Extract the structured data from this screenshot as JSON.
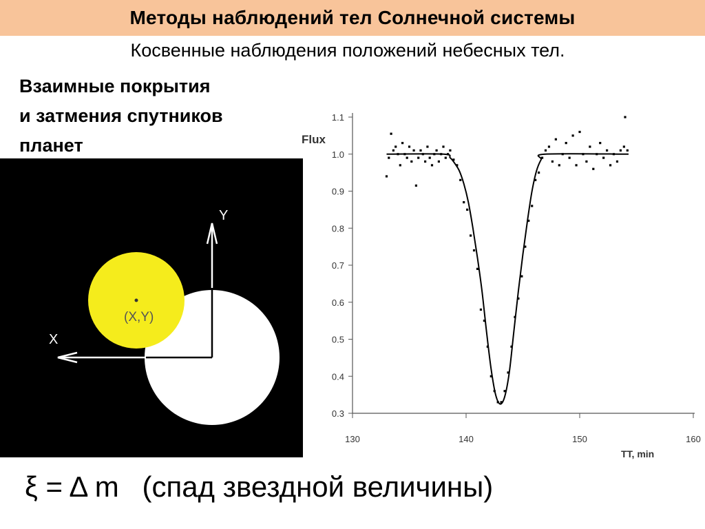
{
  "header": {
    "title": "Методы наблюдений тел Солнечной системы"
  },
  "subtitle": "Косвенные наблюдения положений небесных тел.",
  "heading_lines": [
    "Взаимные покрытия",
    "и затмения спутников",
    "планет"
  ],
  "diagram": {
    "y_axis_label": "Y",
    "x_axis_label": "X",
    "point_label": "(X,Y)",
    "colors": {
      "background": "#000000",
      "satellite": "#f5ec1c",
      "planet": "#ffffff"
    }
  },
  "chart_data": {
    "type": "scatter",
    "ylabel": "Flux",
    "xlabel": "TT, min",
    "xlim": [
      130,
      160
    ],
    "ylim": [
      0.3,
      1.1
    ],
    "x_ticks": [
      "130",
      "140",
      "150",
      "160"
    ],
    "y_ticks": [
      "0.3",
      "0.4",
      "0.5",
      "0.6",
      "0.7",
      "0.8",
      "0.9",
      "1.0",
      "1.1"
    ],
    "model_curve": {
      "x": [
        133.0,
        138.0,
        138.6,
        139.0,
        139.4,
        139.8,
        140.2,
        140.6,
        141.0,
        141.4,
        141.8,
        142.2,
        142.6,
        143.0,
        143.4,
        143.8,
        144.2,
        144.6,
        145.0,
        145.4,
        145.8,
        146.2,
        146.6,
        147.0,
        154.3
      ],
      "y": [
        1.0,
        1.0,
        0.99,
        0.975,
        0.955,
        0.92,
        0.87,
        0.8,
        0.72,
        0.63,
        0.52,
        0.42,
        0.35,
        0.325,
        0.345,
        0.41,
        0.52,
        0.63,
        0.73,
        0.82,
        0.9,
        0.955,
        0.985,
        1.0,
        1.0
      ]
    },
    "points": {
      "x": [
        133.0,
        133.2,
        133.4,
        133.6,
        133.8,
        134.0,
        134.2,
        134.4,
        134.6,
        134.8,
        135.0,
        135.2,
        135.4,
        135.6,
        135.8,
        136.0,
        136.2,
        136.4,
        136.6,
        136.8,
        137.0,
        137.2,
        137.4,
        137.6,
        137.8,
        138.0,
        138.2,
        138.4,
        138.6,
        138.9,
        139.2,
        139.5,
        139.8,
        140.1,
        140.4,
        140.7,
        141.0,
        141.3,
        141.6,
        141.9,
        142.2,
        142.5,
        142.8,
        143.1,
        143.4,
        143.7,
        144.0,
        144.3,
        144.6,
        144.9,
        145.2,
        145.5,
        145.8,
        146.1,
        146.4,
        146.7,
        147.0,
        147.3,
        147.6,
        147.9,
        148.2,
        148.5,
        148.8,
        149.1,
        149.4,
        149.7,
        150.0,
        150.3,
        150.6,
        150.9,
        151.2,
        151.5,
        151.8,
        152.1,
        152.4,
        152.7,
        153.0,
        153.3,
        153.6,
        153.9,
        154.0,
        154.2
      ],
      "y": [
        0.94,
        0.99,
        1.055,
        1.01,
        1.02,
        1.0,
        0.97,
        1.03,
        1.0,
        0.99,
        1.02,
        0.98,
        1.01,
        0.915,
        0.99,
        1.01,
        1.0,
        0.98,
        1.02,
        0.99,
        0.97,
        1.0,
        1.01,
        0.98,
        1.0,
        1.02,
        0.99,
        1.0,
        1.01,
        0.985,
        0.97,
        0.93,
        0.87,
        0.85,
        0.78,
        0.74,
        0.69,
        0.58,
        0.55,
        0.48,
        0.4,
        0.36,
        0.33,
        0.33,
        0.36,
        0.41,
        0.48,
        0.56,
        0.61,
        0.67,
        0.75,
        0.82,
        0.86,
        0.93,
        0.95,
        0.99,
        1.01,
        1.02,
        0.98,
        1.04,
        0.97,
        1.0,
        1.03,
        0.99,
        1.05,
        0.97,
        1.06,
        1.0,
        0.98,
        1.02,
        0.96,
        1.0,
        1.03,
        0.99,
        1.01,
        0.97,
        1.0,
        0.98,
        1.01,
        1.02,
        1.1,
        1.01
      ]
    },
    "colors": {
      "axis": "#555555",
      "data": "#000000"
    }
  },
  "formula": {
    "xi": "ξ",
    "equals": "=",
    "delta": "Δ",
    "m": "m",
    "caption": "(спад звездной величины)"
  }
}
